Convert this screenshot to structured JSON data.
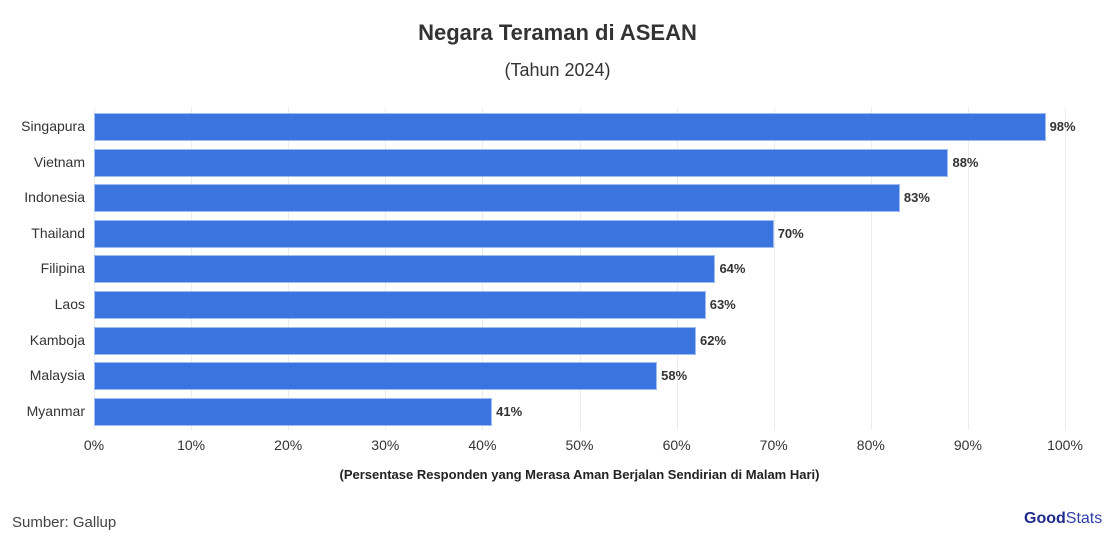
{
  "header": {
    "title": "Negara Teraman di ASEAN",
    "subtitle": "(Tahun 2024)"
  },
  "footer": {
    "source": "Sumber: Gallup",
    "logo_good": "Good",
    "logo_stats": "Stats"
  },
  "colors": {
    "bar": "#3a74de",
    "text": "#333333"
  },
  "chart_data": {
    "type": "bar",
    "orientation": "horizontal",
    "title": "Negara Teraman di ASEAN",
    "subtitle": "(Tahun 2024)",
    "categories": [
      "Singapura",
      "Vietnam",
      "Indonesia",
      "Thailand",
      "Filipina",
      "Laos",
      "Kamboja",
      "Malaysia",
      "Myanmar"
    ],
    "values": [
      98,
      88,
      83,
      70,
      64,
      63,
      62,
      58,
      41
    ],
    "value_labels": [
      "98%",
      "88%",
      "83%",
      "70%",
      "64%",
      "63%",
      "62%",
      "58%",
      "41%"
    ],
    "xlabel": "(Persentase Responden yang Merasa Aman Berjalan Sendirian di Malam Hari)",
    "ylabel": "",
    "xlim": [
      0,
      100
    ],
    "xticks": [
      "0%",
      "10%",
      "20%",
      "30%",
      "40%",
      "50%",
      "60%",
      "70%",
      "80%",
      "90%",
      "100%"
    ],
    "grid": true,
    "legend": "none",
    "source": "Sumber: Gallup"
  }
}
